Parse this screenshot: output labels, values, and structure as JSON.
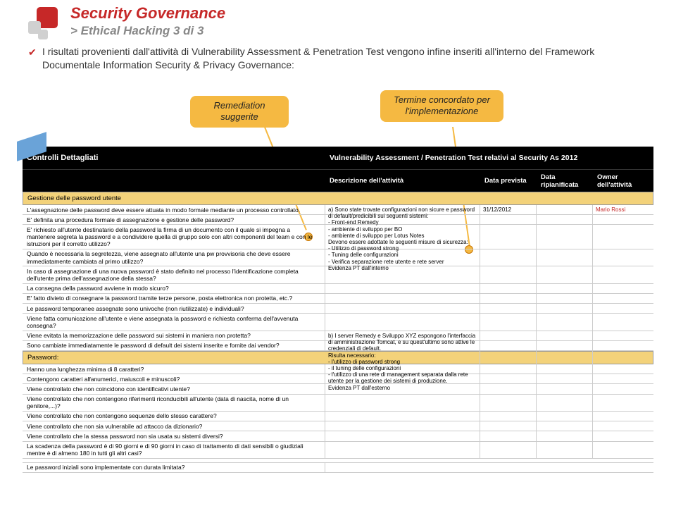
{
  "heading": {
    "title": "Security Governance",
    "subtitle": "> Ethical Hacking 3 di 3"
  },
  "body_text": "I risultati provenienti dall'attività di Vulnerability Assessment & Penetration Test vengono infine inseriti all'interno del Framework Documentale Information Security & Privacy Governance:",
  "callouts": {
    "remediation": "Remediation suggerite",
    "termine": "Termine concordato per l'implementazione"
  },
  "table": {
    "header_left": "Controlli Dettagliati",
    "header_right": "Vulnerability Assessment / Penetration Test relativi al Security As 2012",
    "cols": {
      "c2": "Descrizione dell'attività",
      "c3": "Data prevista",
      "c4": "Data ripianificata",
      "c5": "Owner dell'attività"
    },
    "section_a": "Gestione delle password utente",
    "rows_a": [
      "L'assegnazione delle password deve essere attuata in modo formale mediante un processo controllato.",
      "E' definita una procedura formale di assegnazione e gestione delle password?",
      "E' richiesto all'utente destinatario della password la firma di un documento con il quale si impegna a mantenere segreta la password e a condividere quella di gruppo solo con altri componenti del team e con le istruzioni per il corretto utilizzo?",
      "Quando è necessaria la segretezza, viene assegnato all'utente una pw provvisoria che deve essere immediatamente cambiata al primo utilizzo?",
      "In caso di assegnazione di una nuova password è stato definito nel processo l'identificazione completa dell'utente prima dell'assegnazione della stessa?",
      "La consegna della password avviene in modo sicuro?",
      "E' fatto divieto di consegnare la password tramite terze persone, posta elettronica non protetta, etc.?",
      "Le password temporanee assegnate sono univoche (non riutilizzate) e individuali?",
      "Viene fatta comunicazione all'utente e viene assegnata la password e richiesta conferma dell'avvenuta consegna?"
    ],
    "desc_a": "a) Sono state trovate configurazioni non sicure e password di default/predicibili sui seguenti sistemi:\n- Front-end Remedy\n- ambiente di sviluppo per BO\n- ambiente di sviluppo per Lotus Notes\nDevono essere adottate le seguenti misure di sicurezza:\n- Utilizzo di password strong\n- Tuning delle configurazioni\n- Verifica separazione rete utente e rete server\nEvidenza PT dall'interno",
    "date_a": "31/12/2012",
    "owner_a": "Mario Rossi",
    "rows_b": [
      "Viene evitata la memorizzazione delle password sui sistemi in maniera non protetta?",
      "Sono cambiate immediatamente le password di default dei sistemi inserite e fornite dai vendor?"
    ],
    "desc_b": "b) I server Remedy e Sviluppo XYZ espongono l'interfaccia di amministrazione Tomcat, e su quest'ultimo sono attive le credenziali di default.\nRisulta necessario:\n- l'utilizzo di password strong\n- il tuning delle configurazioni\n- l'utilizzo di una rete di management separata dalla rete utente per la gestione dei sistemi di produzione.\nEvidenza PT dall'esterno",
    "section_b": "Password:",
    "rows_c": [
      "Hanno una lunghezza minima di 8 caratteri?",
      "Contengono caratteri alfanumerici, maiuscoli e minuscoli?",
      "Viene controllato che non coincidono con identificativi utente?",
      "Viene controllato che non contengono riferimenti riconducibili all'utente (data di nascita, nome di un genitore,...)?",
      "Viene controllato che non contengono sequenze dello stesso carattere?",
      "Viene controllato che non sia vulnerabile ad attacco da dizionario?",
      "Viene controllato che la stessa password non sia usata su sistemi diversi?",
      "La scadenza della password è di 90 giorni e di 90 giorni in caso di trattamento di dati sensibili o giudiziali mentre è di almeno 180 in tutti gli altri casi?"
    ],
    "rows_d": [
      "Le password iniziali sono implementate con durata limitata?"
    ]
  },
  "colors": {
    "accent": "#c62828",
    "callout_bg": "#f5b942",
    "section_bg": "#f3d27a",
    "header_bg": "#000000",
    "tab_bg": "#6aa3d8"
  }
}
